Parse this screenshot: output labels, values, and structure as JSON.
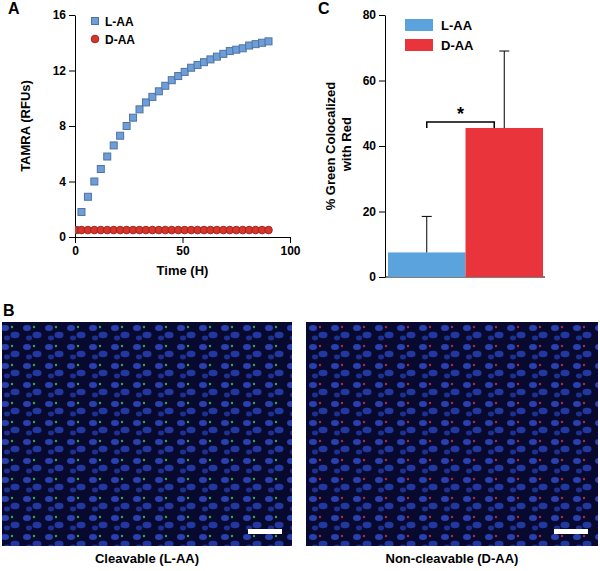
{
  "chart_data": [
    {
      "type": "scatter",
      "panel_label": "A",
      "x_label": "Time (H)",
      "y_label": "TAMRA (RFUs)",
      "x": [
        0,
        3,
        6,
        9,
        12,
        15,
        18,
        21,
        24,
        27,
        30,
        33,
        36,
        39,
        42,
        45,
        48,
        51,
        54,
        57,
        60,
        63,
        66,
        69,
        72,
        75,
        78,
        81,
        84,
        87,
        90
      ],
      "series": [
        {
          "name": "L-AA",
          "color": "#6d9eda",
          "marker": "square",
          "line_style": "none",
          "values": [
            0.5,
            1.8,
            2.9,
            4.0,
            4.9,
            5.8,
            6.6,
            7.3,
            8.0,
            8.6,
            9.2,
            9.7,
            10.1,
            10.5,
            10.9,
            11.3,
            11.6,
            11.9,
            12.2,
            12.4,
            12.6,
            12.8,
            13.0,
            13.2,
            13.4,
            13.5,
            13.6,
            13.8,
            13.9,
            14.0,
            14.1
          ]
        },
        {
          "name": "D-AA",
          "color": "#d9342b",
          "marker": "circle",
          "line_style": "none",
          "values": [
            0.5,
            0.5,
            0.5,
            0.5,
            0.5,
            0.5,
            0.5,
            0.5,
            0.5,
            0.5,
            0.5,
            0.5,
            0.5,
            0.5,
            0.5,
            0.5,
            0.5,
            0.5,
            0.5,
            0.5,
            0.5,
            0.5,
            0.5,
            0.5,
            0.5,
            0.5,
            0.5,
            0.5,
            0.5,
            0.5,
            0.5
          ]
        }
      ],
      "xlim": [
        0,
        100
      ],
      "xticks": [
        0,
        50,
        100
      ],
      "ylim": [
        0,
        16
      ],
      "yticks": [
        0,
        4,
        8,
        12,
        16
      ],
      "legend": "upper-left",
      "grid": false
    },
    {
      "type": "bar",
      "panel_label": "C",
      "y_label": "% Green Colocalized with Red",
      "categories": [
        null
      ],
      "series": [
        {
          "name": "L-AA",
          "color": "#5ba3dc",
          "values": [
            7.5
          ],
          "errors": [
            11
          ]
        },
        {
          "name": "D-AA",
          "color": "#e8343a",
          "values": [
            45.5
          ],
          "errors": [
            23.5
          ]
        }
      ],
      "ylim": [
        0,
        80
      ],
      "yticks": [
        0,
        20,
        40,
        60,
        80
      ],
      "annotations": [
        "*"
      ],
      "tick_labels": "y",
      "legend": "upper-left",
      "grid": false
    }
  ],
  "images": {
    "panel_label": "B",
    "panels": [
      {
        "caption": "Cleavable (L-AA)"
      },
      {
        "caption": "Non-cleavable (D-AA)"
      }
    ]
  }
}
